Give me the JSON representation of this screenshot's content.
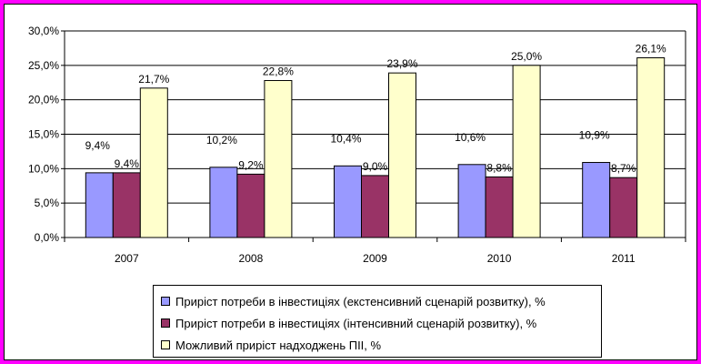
{
  "chart_data": {
    "type": "bar",
    "categories": [
      "2007",
      "2008",
      "2009",
      "2010",
      "2011"
    ],
    "series": [
      {
        "name": "Приріст потреби в інвестиціях (екстенсивний сценарій розвитку), %",
        "values": [
          9.4,
          10.2,
          10.4,
          10.6,
          10.9
        ],
        "labels": [
          "9,4%",
          "10,2%",
          "10,4%",
          "10,6%",
          "10,9%"
        ],
        "color": "#9999ff"
      },
      {
        "name": "Приріст потреби в інвестиціях (інтенсивний сценарій розвитку), %",
        "values": [
          9.4,
          9.2,
          9.0,
          8.8,
          8.7
        ],
        "labels": [
          "9,4%",
          "9,2%",
          "9,0%",
          "8,8%",
          "8,7%"
        ],
        "color": "#993366"
      },
      {
        "name": "Можливий приріст надходжень ПІІ, %",
        "values": [
          21.7,
          22.8,
          23.9,
          25.0,
          26.1
        ],
        "labels": [
          "21,7%",
          "22,8%",
          "23,9%",
          "25,0%",
          "26,1%"
        ],
        "color": "#ffffcc"
      }
    ],
    "ylim": [
      0,
      30
    ],
    "yticks": [
      0,
      5,
      10,
      15,
      20,
      25,
      30
    ],
    "ytick_labels": [
      "0,0%",
      "5,0%",
      "10,0%",
      "15,0%",
      "20,0%",
      "25,0%",
      "30,0%"
    ],
    "grid": true,
    "legend_position": "bottom"
  }
}
